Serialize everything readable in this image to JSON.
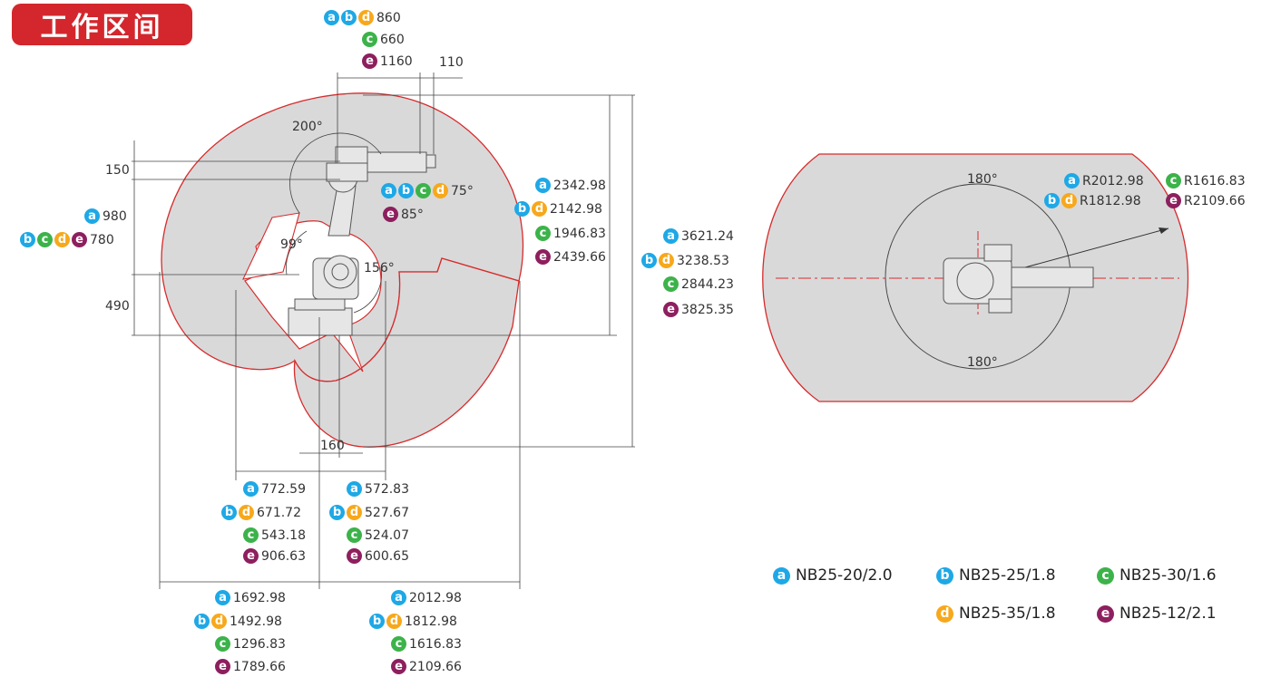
{
  "title": "工作区间",
  "colors": {
    "a": "#e93c3a",
    "b": "#1ea8e6",
    "c": "#3cb34a",
    "d": "#f7a81b",
    "e": "#8e1f5e",
    "envelope": "#d72b2b",
    "fill": "#d9d9da"
  },
  "side_view": {
    "top": {
      "abd": "860",
      "c": "660",
      "e": "1160",
      "offset": "110"
    },
    "left": {
      "d150": "150",
      "d490": "490",
      "a": "980",
      "bcde": "780"
    },
    "angles": {
      "a200": "200°",
      "a99": "99°",
      "a156": "156°",
      "abcd": "75°",
      "e": "85°"
    },
    "d160": "160",
    "reach": {
      "a": "2342.98",
      "bd": "2142.98",
      "c": "1946.83",
      "e": "2439.66"
    },
    "height": {
      "a": "3621.24",
      "bd": "3238.53",
      "c": "2844.23",
      "e": "3825.35"
    },
    "bottom_left": {
      "a": "772.59",
      "bd": "671.72",
      "c": "543.18",
      "e": "906.63"
    },
    "bottom_right": {
      "a": "572.83",
      "bd": "527.67",
      "c": "524.07",
      "e": "600.65"
    },
    "total_left": {
      "a": "1692.98",
      "bd": "1492.98",
      "c": "1296.83",
      "e": "1789.66"
    },
    "total_right": {
      "a": "2012.98",
      "bd": "1812.98",
      "c": "1616.83",
      "e": "2109.66"
    }
  },
  "top_view": {
    "angle_top": "180°",
    "angle_bottom": "180°",
    "radius": {
      "a": "R2012.98",
      "bd": "R1812.98",
      "c": "R1616.83",
      "e": "R2109.66"
    }
  },
  "legend": [
    {
      "key": "a",
      "letter": "a",
      "model": "NB25-20/2.0"
    },
    {
      "key": "b",
      "letter": "b",
      "model": "NB25-25/1.8"
    },
    {
      "key": "c",
      "letter": "c",
      "model": "NB25-30/1.6"
    },
    {
      "key": "d",
      "letter": "d",
      "model": "NB25-35/1.8"
    },
    {
      "key": "e",
      "letter": "e",
      "model": "NB25-12/2.1"
    }
  ]
}
